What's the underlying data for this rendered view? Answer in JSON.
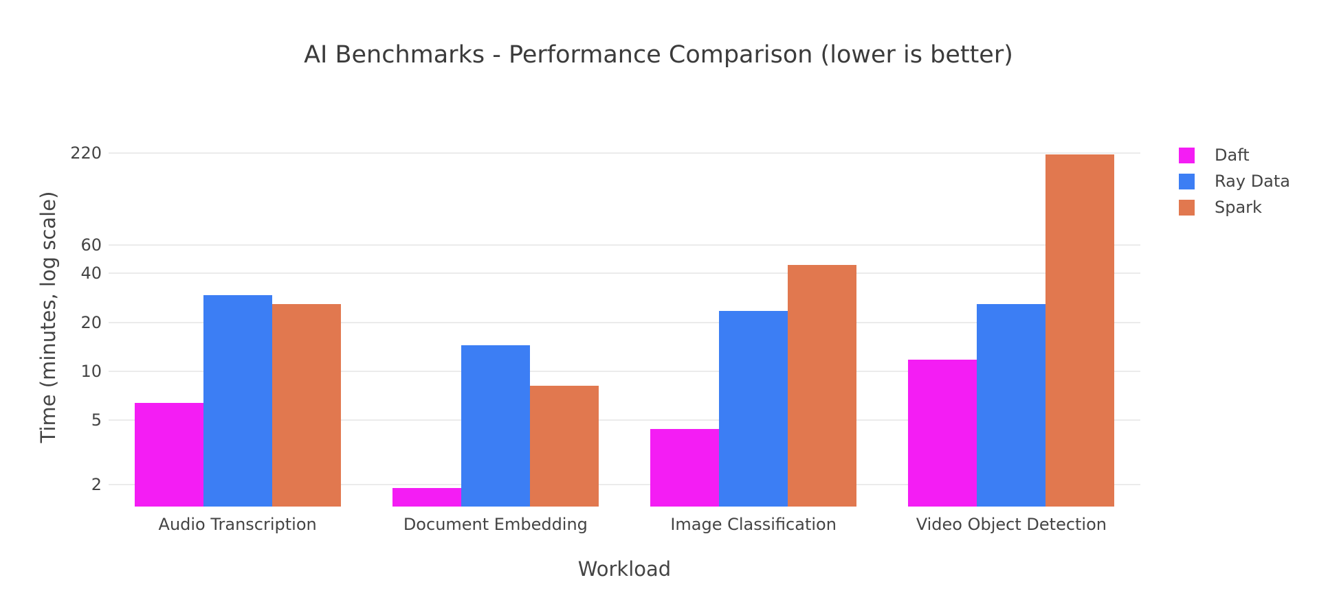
{
  "chart_data": {
    "type": "bar",
    "title": "AI Benchmarks - Performance Comparison (lower is better)",
    "xlabel": "Workload",
    "ylabel": "Time (minutes, log scale)",
    "yscale": "log",
    "grid": "horizontal",
    "legend_position": "right-top-outside",
    "categories": [
      "Audio Transcription",
      "Document Embedding",
      "Image Classification",
      "Video Object Detection"
    ],
    "series": [
      {
        "name": "Daft",
        "color": "#F41DF4",
        "values": [
          6.4,
          1.9,
          4.4,
          11.8
        ]
      },
      {
        "name": "Ray Data",
        "color": "#3C7EF4",
        "values": [
          29.3,
          14.5,
          23.5,
          25.9
        ]
      },
      {
        "name": "Spark",
        "color": "#E1784F",
        "values": [
          25.8,
          8.1,
          45.1,
          216
        ]
      }
    ],
    "yticks": [
      2,
      5,
      10,
      20,
      40,
      60,
      220
    ],
    "ylim_log": [
      0.166,
      2.5
    ],
    "bar_group_fraction": 0.8,
    "colors": {
      "background": "#ffffff",
      "gridline": "#ebebeb",
      "tick_text": "#444444",
      "title_text": "#3b3b3b"
    }
  }
}
